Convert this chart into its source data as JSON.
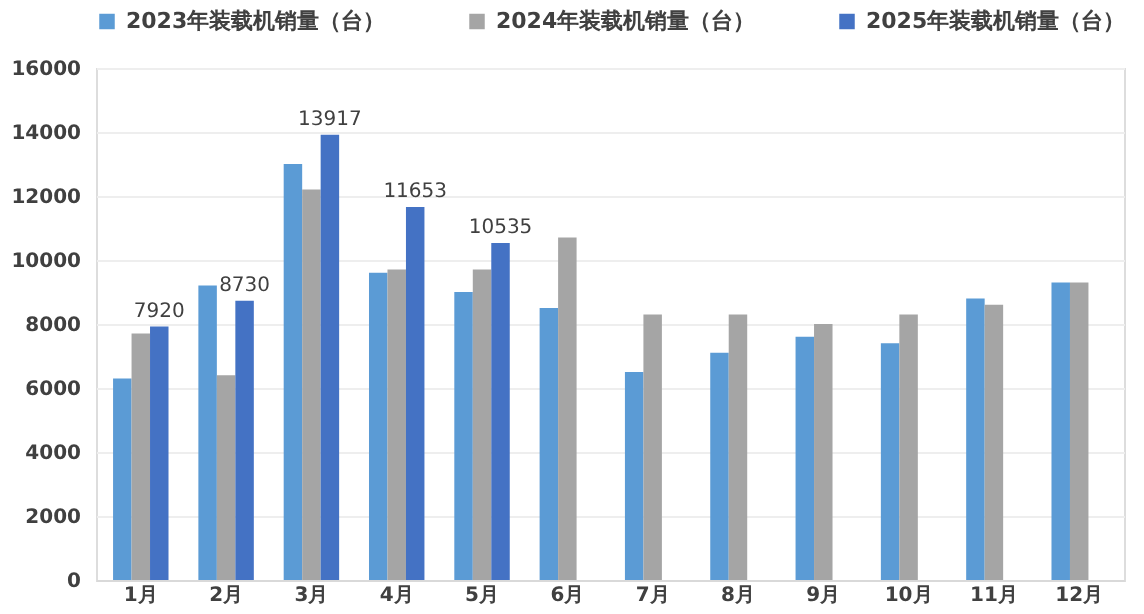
{
  "chart_data": {
    "type": "bar",
    "categories": [
      "1月",
      "2月",
      "3月",
      "4月",
      "5月",
      "6月",
      "7月",
      "8月",
      "9月",
      "10月",
      "11月",
      "12月"
    ],
    "series": [
      {
        "name": "2023年装载机销量（台）",
        "color": "#5b9bd5",
        "values": [
          6300,
          9200,
          13000,
          9600,
          9000,
          8500,
          6500,
          7100,
          7600,
          7400,
          8800,
          9300
        ]
      },
      {
        "name": "2024年装载机销量（台）",
        "color": "#a5a5a5",
        "values": [
          7700,
          6400,
          12200,
          9700,
          9700,
          10700,
          8300,
          8300,
          8000,
          8300,
          8600,
          9300
        ]
      },
      {
        "name": "2025年装载机销量（台）",
        "color": "#4472c4",
        "values": [
          7920,
          8730,
          13917,
          11653,
          10535,
          null,
          null,
          null,
          null,
          null,
          null,
          null
        ],
        "value_labels": [
          "7920",
          "8730",
          "13917",
          "11653",
          "10535",
          null,
          null,
          null,
          null,
          null,
          null,
          null
        ]
      }
    ],
    "ylim": [
      0,
      16000
    ],
    "yticks": [
      0,
      2000,
      4000,
      6000,
      8000,
      10000,
      12000,
      14000,
      16000
    ],
    "grid": "y",
    "legend": "top"
  }
}
